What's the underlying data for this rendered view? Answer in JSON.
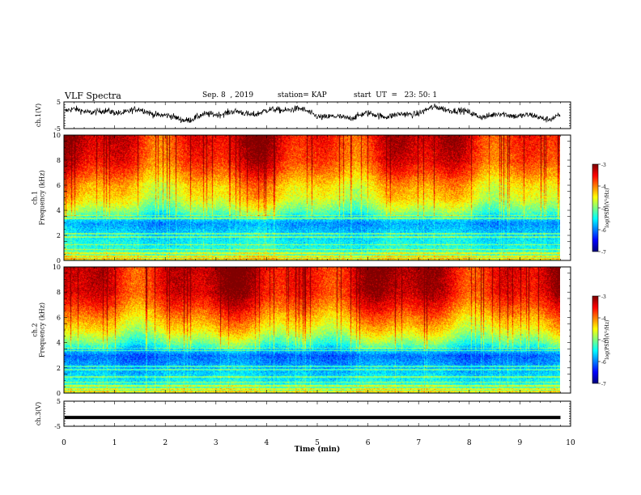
{
  "header": {
    "title": "VLF Spectra",
    "date": "Sep. 8  , 2019",
    "station": "station= KAP",
    "start": "start  UT  =   23: 50: 1"
  },
  "chart_data": [
    {
      "type": "line",
      "name": "ch1-waveform",
      "ylabel": "ch.1(V)",
      "ylim": [
        -5,
        5
      ],
      "yticks": [
        "5",
        "-5"
      ],
      "xlim": [
        0,
        10
      ]
    },
    {
      "type": "heatmap",
      "name": "ch1-spectrogram",
      "ylabel_line1": "ch.1",
      "ylabel_line2": "Frequency  (kHz)",
      "ylim": [
        0,
        10
      ],
      "yticks": [
        "0",
        "2",
        "4",
        "6",
        "8",
        "10"
      ],
      "xlim": [
        0,
        10
      ],
      "data_extent_min": 9.8,
      "colorbar": {
        "label": "log(PSD)(V²/Hz)",
        "range": [
          -7,
          -3
        ],
        "ticks": [
          "-3",
          "-4",
          "-5",
          "-6",
          "-7"
        ]
      },
      "profile_kHz_log_psd": [
        [
          0,
          -4.8
        ],
        [
          1,
          -5.4
        ],
        [
          2,
          -5.6
        ],
        [
          3,
          -5.9
        ],
        [
          4,
          -5.0
        ],
        [
          5,
          -4.5
        ],
        [
          6,
          -4.3
        ],
        [
          7,
          -3.9
        ],
        [
          8,
          -3.6
        ],
        [
          10,
          -3.4
        ]
      ]
    },
    {
      "type": "heatmap",
      "name": "ch2-spectrogram",
      "ylabel_line1": "ch.2",
      "ylabel_line2": "Frequency  (kHz)",
      "ylim": [
        0,
        10
      ],
      "yticks": [
        "0",
        "2",
        "4",
        "6",
        "8",
        "10"
      ],
      "xlim": [
        0,
        10
      ],
      "data_extent_min": 9.8,
      "colorbar": {
        "label": "log(PSD)(V²/Hz)",
        "range": [
          -7,
          -3
        ],
        "ticks": [
          "-3",
          "-4",
          "-5",
          "-6",
          "-7"
        ]
      },
      "profile_kHz_log_psd": [
        [
          0,
          -4.9
        ],
        [
          1,
          -5.5
        ],
        [
          2,
          -5.8
        ],
        [
          3,
          -6.1
        ],
        [
          4,
          -5.1
        ],
        [
          5,
          -4.5
        ],
        [
          6,
          -4.1
        ],
        [
          7,
          -3.7
        ],
        [
          8,
          -3.4
        ],
        [
          10,
          -3.3
        ]
      ]
    },
    {
      "type": "line",
      "name": "ch3-waveform",
      "ylabel": "ch.3(V)",
      "ylim": [
        -5,
        5
      ],
      "yticks": [
        "5",
        "-5"
      ],
      "xlim": [
        0,
        10
      ],
      "level_V": -1.5
    }
  ],
  "xaxis": {
    "label": "Time  (min)",
    "ticks": [
      "0",
      "1",
      "2",
      "3",
      "4",
      "5",
      "6",
      "7",
      "8",
      "9",
      "10"
    ]
  }
}
